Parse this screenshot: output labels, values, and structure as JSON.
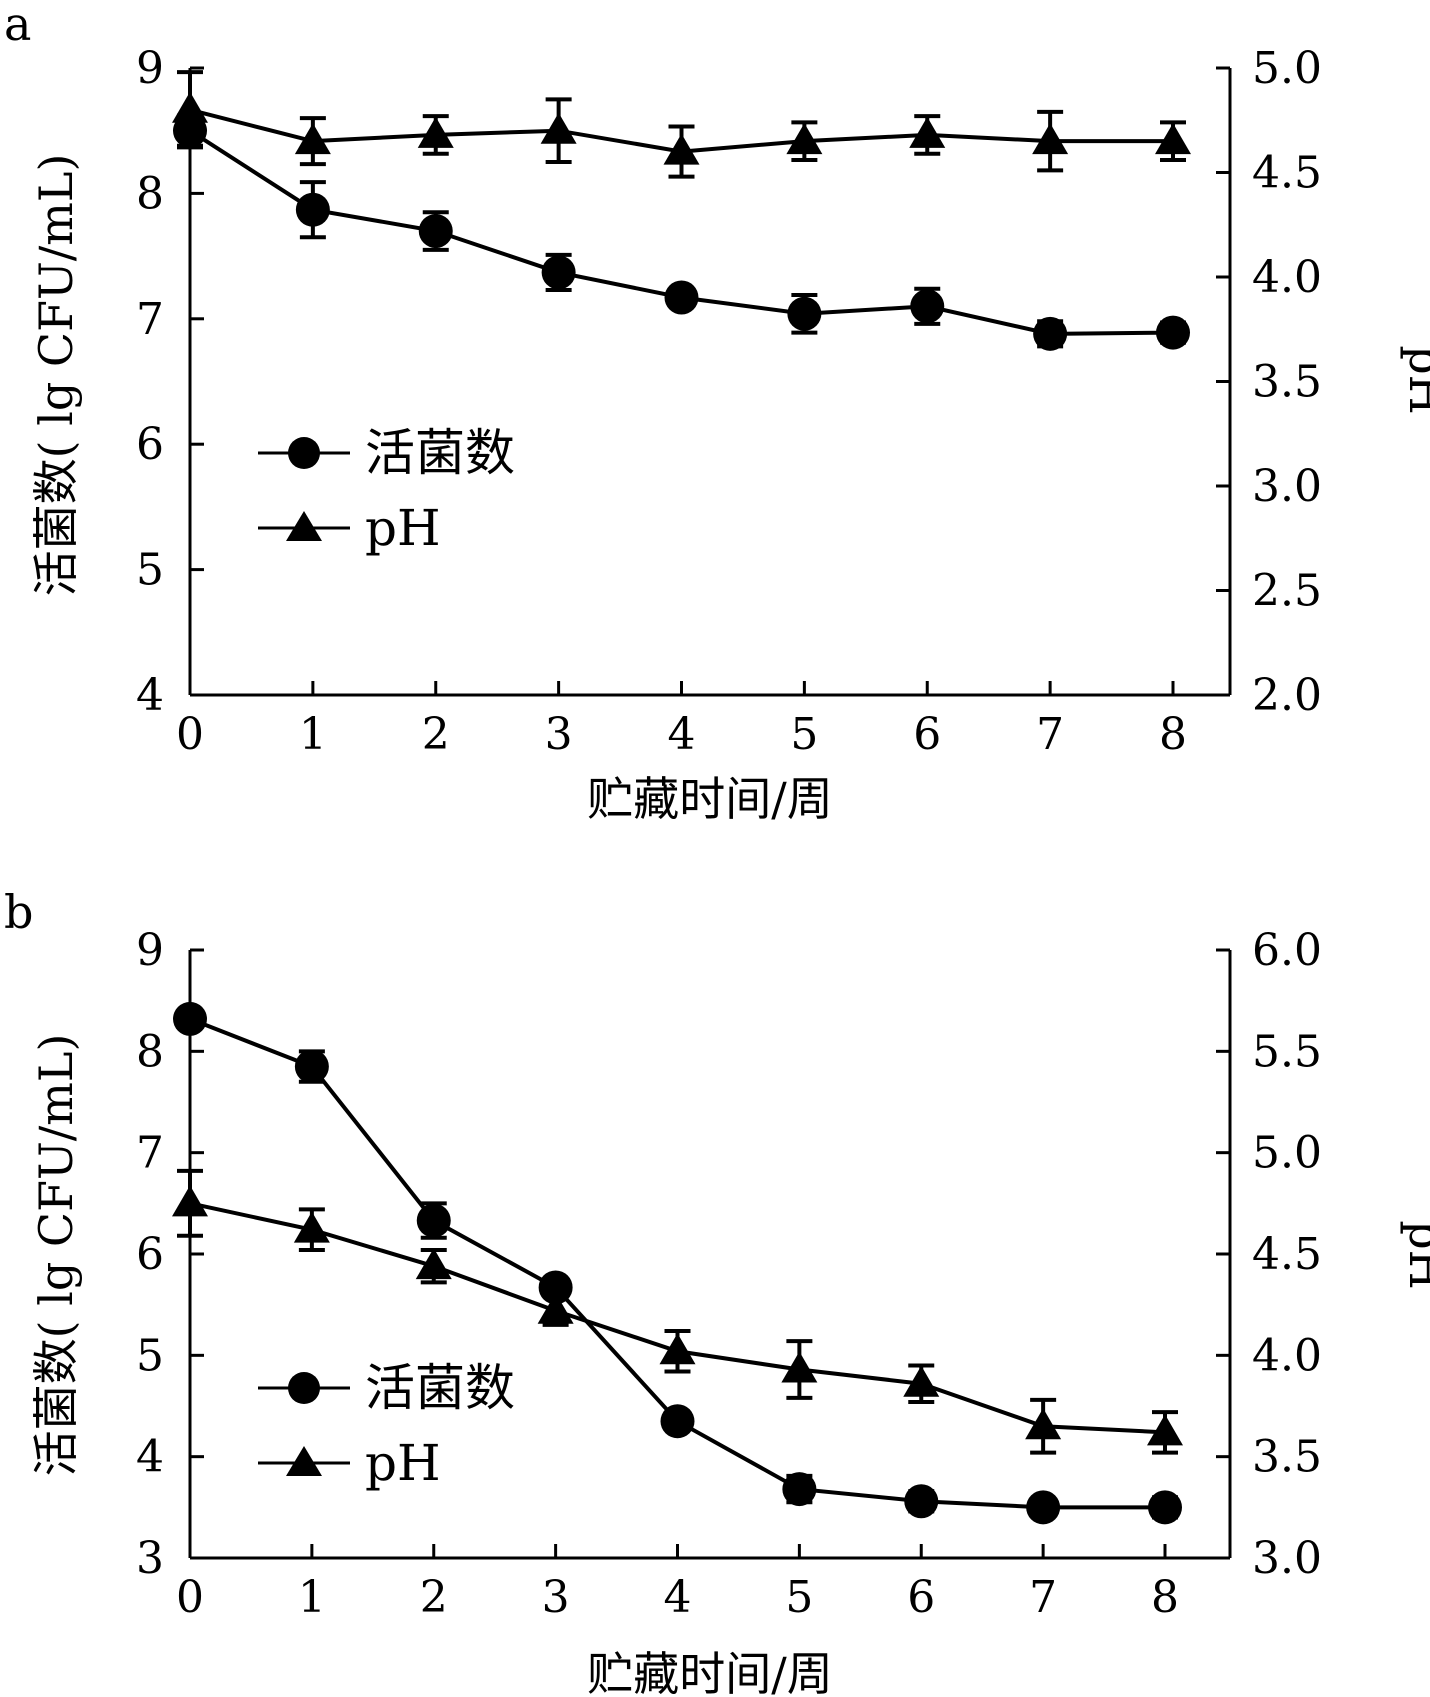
{
  "chart_data": [
    {
      "panel_label": "a",
      "type": "line",
      "x": [
        0,
        1,
        2,
        3,
        4,
        5,
        6,
        7,
        8
      ],
      "xlim": [
        0,
        8
      ],
      "xticks": [
        "0",
        "1",
        "2",
        "3",
        "4",
        "5",
        "6",
        "7",
        "8"
      ],
      "xlabel": "贮藏时间/周",
      "ylabel": "活菌数( lg CFU/mL)",
      "ylim": [
        4,
        9
      ],
      "yticks": [
        "4",
        "5",
        "6",
        "7",
        "8",
        "9"
      ],
      "y2label": "pH",
      "y2lim": [
        2.0,
        5.0
      ],
      "y2ticks": [
        "2.0",
        "2.5",
        "3.0",
        "3.5",
        "4.0",
        "4.5",
        "5.0"
      ],
      "grid": false,
      "legend_position": "center-left",
      "series": [
        {
          "name": "活菌数",
          "axis": "left",
          "marker": "circle",
          "values": [
            8.5,
            7.87,
            7.7,
            7.37,
            7.17,
            7.04,
            7.1,
            6.88,
            6.89
          ],
          "errors": [
            0.12,
            0.22,
            0.15,
            0.14,
            0.06,
            0.15,
            0.14,
            0.1,
            0.08
          ]
        },
        {
          "name": "pH",
          "axis": "right",
          "marker": "triangle",
          "values": [
            4.8,
            4.65,
            4.68,
            4.7,
            4.6,
            4.65,
            4.68,
            4.65,
            4.65
          ],
          "errors": [
            0.18,
            0.11,
            0.09,
            0.15,
            0.12,
            0.09,
            0.09,
            0.14,
            0.09
          ]
        }
      ]
    },
    {
      "panel_label": "b",
      "type": "line",
      "x": [
        0,
        1,
        2,
        3,
        4,
        5,
        6,
        7,
        8
      ],
      "xlim": [
        0,
        8
      ],
      "xticks": [
        "0",
        "1",
        "2",
        "3",
        "4",
        "5",
        "6",
        "7",
        "8"
      ],
      "xlabel": "贮藏时间/周",
      "ylabel": "活菌数( lg CFU/mL)",
      "ylim": [
        3,
        9
      ],
      "yticks": [
        "3",
        "4",
        "5",
        "6",
        "7",
        "8",
        "9"
      ],
      "y2label": "pH",
      "y2lim": [
        3.0,
        6.0
      ],
      "y2ticks": [
        "3.0",
        "3.5",
        "4.0",
        "4.5",
        "5.0",
        "5.5",
        "6.0"
      ],
      "grid": false,
      "legend_position": "bottom-left",
      "series": [
        {
          "name": "活菌数",
          "axis": "left",
          "marker": "circle",
          "values": [
            8.32,
            7.85,
            6.33,
            5.67,
            4.35,
            3.68,
            3.56,
            3.5,
            3.5
          ],
          "errors": [
            0.06,
            0.15,
            0.17,
            0.06,
            0.06,
            0.13,
            0.1,
            0.08,
            0.1
          ]
        },
        {
          "name": "pH",
          "axis": "right",
          "marker": "triangle",
          "values": [
            4.75,
            4.62,
            4.44,
            4.22,
            4.02,
            3.93,
            3.86,
            3.65,
            3.62
          ],
          "errors": [
            0.16,
            0.1,
            0.08,
            0.07,
            0.1,
            0.14,
            0.09,
            0.13,
            0.1
          ]
        }
      ]
    }
  ]
}
